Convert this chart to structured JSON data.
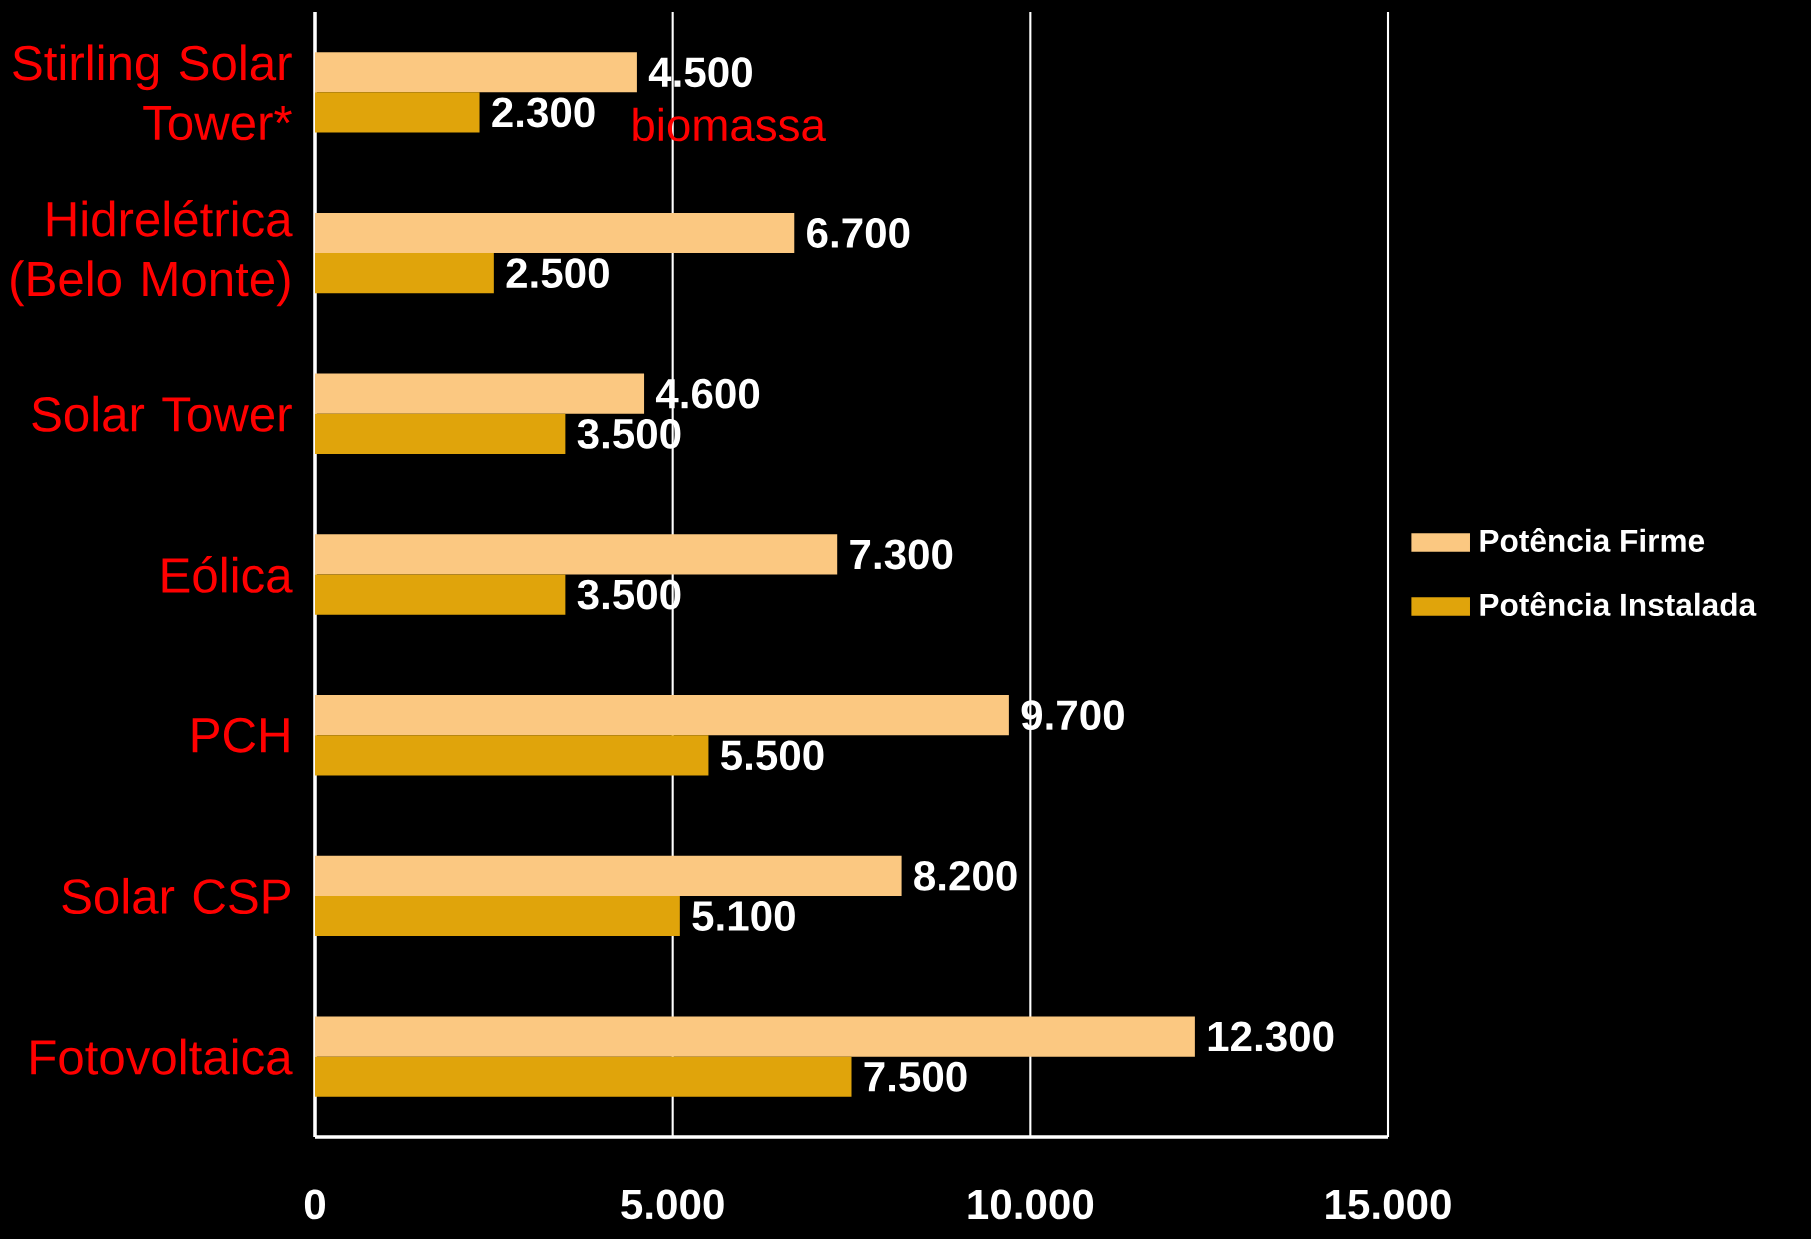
{
  "chart_data": {
    "type": "bar",
    "orientation": "horizontal",
    "categories": [
      "Stirling Solar Tower*",
      "Hidrelétrica (Belo Monte)",
      "Solar Tower",
      "Eólica",
      "PCH",
      "Solar CSP",
      "Fotovoltaica"
    ],
    "series": [
      {
        "name": "Potência Firme",
        "color": "#fbc881",
        "values": [
          4500,
          6700,
          4600,
          7300,
          9700,
          8200,
          12300
        ],
        "value_labels": [
          "4.500",
          "6.700",
          "4.600",
          "7.300",
          "9.700",
          "8.200",
          "12.300"
        ]
      },
      {
        "name": "Potência Instalada",
        "color": "#e0a40b",
        "values": [
          2300,
          2500,
          3500,
          3500,
          5500,
          5100,
          7500
        ],
        "value_labels": [
          "2.300",
          "2.500",
          "3.500",
          "3.500",
          "5.500",
          "5.100",
          "7.500"
        ]
      }
    ],
    "xlim": [
      0,
      15000
    ],
    "xticks": [
      {
        "value": 0,
        "label": "0"
      },
      {
        "value": 5000,
        "label": "5.000"
      },
      {
        "value": 10000,
        "label": "10.000"
      },
      {
        "value": 15000,
        "label": "15.000"
      }
    ],
    "grid": "x",
    "legend": "right",
    "annotations": [
      "biomassa"
    ]
  }
}
